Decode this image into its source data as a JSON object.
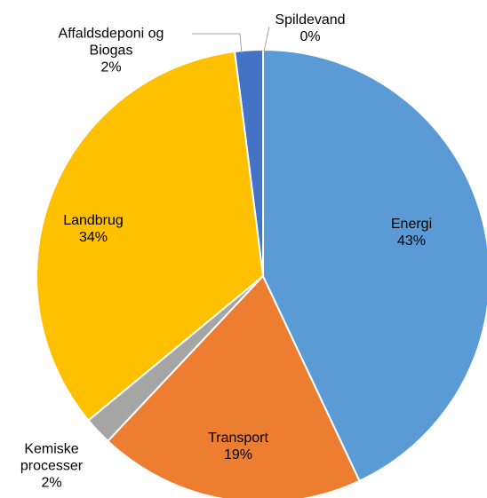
{
  "chart_data": {
    "type": "pie",
    "categories": [
      "Energi",
      "Transport",
      "Kemiske processer",
      "Landbrug",
      "Affaldsdeponi og Biogas",
      "Spildevand"
    ],
    "values": [
      43,
      19,
      2,
      34,
      2,
      0
    ],
    "value_labels": [
      "43%",
      "19%",
      "2%",
      "34%",
      "2%",
      "0%"
    ],
    "colors": [
      "#5b9bd5",
      "#ed7d31",
      "#a5a5a5",
      "#ffc000",
      "#4472c4",
      "#70ad47"
    ]
  }
}
